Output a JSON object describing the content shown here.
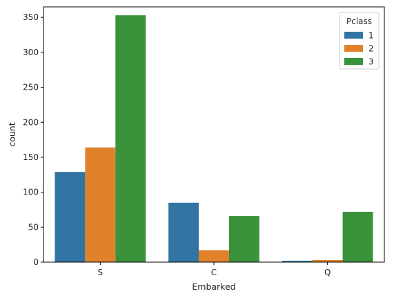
{
  "chart_data": {
    "type": "bar",
    "xlabel": "Embarked",
    "ylabel": "count",
    "categories": [
      "S",
      "C",
      "Q"
    ],
    "ylim": [
      0,
      365
    ],
    "yticks": [
      0,
      50,
      100,
      150,
      200,
      250,
      300,
      350
    ],
    "legend": {
      "title": "Pclass",
      "placement": "top-right"
    },
    "series": [
      {
        "name": "1",
        "color": "#3274a1",
        "values": [
          129,
          85,
          2
        ]
      },
      {
        "name": "2",
        "color": "#e1812c",
        "values": [
          164,
          17,
          3
        ]
      },
      {
        "name": "3",
        "color": "#3a923a",
        "values": [
          353,
          66,
          72
        ]
      }
    ],
    "grid": false
  }
}
